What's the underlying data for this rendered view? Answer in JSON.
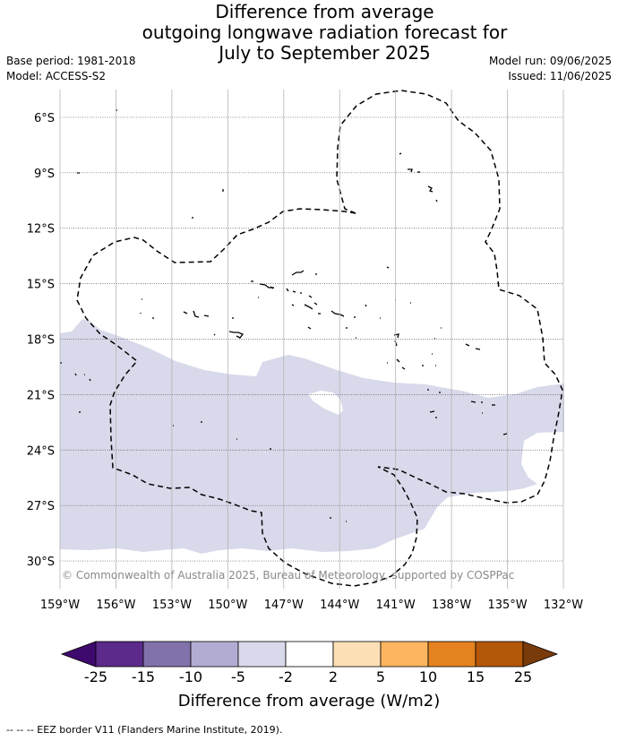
{
  "title": {
    "line1": "Difference from average",
    "line2": "outgoing longwave radiation forecast for",
    "line3": "July to September 2025"
  },
  "metadata": {
    "base_period": "Base period: 1981-2018",
    "model": "Model: ACCESS-S2",
    "model_run": "Model run: 09/06/2025",
    "issued": "Issued: 11/06/2025"
  },
  "map": {
    "lon_range": [
      -159,
      -132
    ],
    "lat_range": [
      -31.5,
      -4.5
    ],
    "lat_ticks": [
      "6°S",
      "9°S",
      "12°S",
      "15°S",
      "18°S",
      "21°S",
      "24°S",
      "27°S",
      "30°S"
    ],
    "lat_values": [
      -6,
      -9,
      -12,
      -15,
      -18,
      -21,
      -24,
      -27,
      -30
    ],
    "lon_ticks": [
      "159°W",
      "156°W",
      "153°W",
      "150°W",
      "147°W",
      "144°W",
      "141°W",
      "138°W",
      "135°W",
      "132°W"
    ],
    "lon_values": [
      -159,
      -156,
      -153,
      -150,
      -147,
      -144,
      -141,
      -138,
      -135,
      -132
    ],
    "grid": "dotted",
    "anomaly_fill_color": "#d8d9ea",
    "anomaly_class": "-5 to -2",
    "copyright": "© Commonwealth of Australia 2025, Bureau of Meteorology, supported by COSPPac"
  },
  "colorbar": {
    "ticks": [
      "-25",
      "-15",
      "-10",
      "-5",
      "-2",
      "2",
      "5",
      "10",
      "15",
      "25"
    ],
    "colors": [
      "#3f0a6e",
      "#5b2a8a",
      "#8272ac",
      "#b3acd2",
      "#d8d9ea",
      "#ffffff",
      "#fddfb6",
      "#fdb560",
      "#e3821f",
      "#b35708",
      "#7a3b0b"
    ],
    "title": "Difference from average (W/m2)"
  },
  "footer": {
    "text": "-- -- -- EEZ border V11 (Flanders Marine Institute, 2019)."
  }
}
